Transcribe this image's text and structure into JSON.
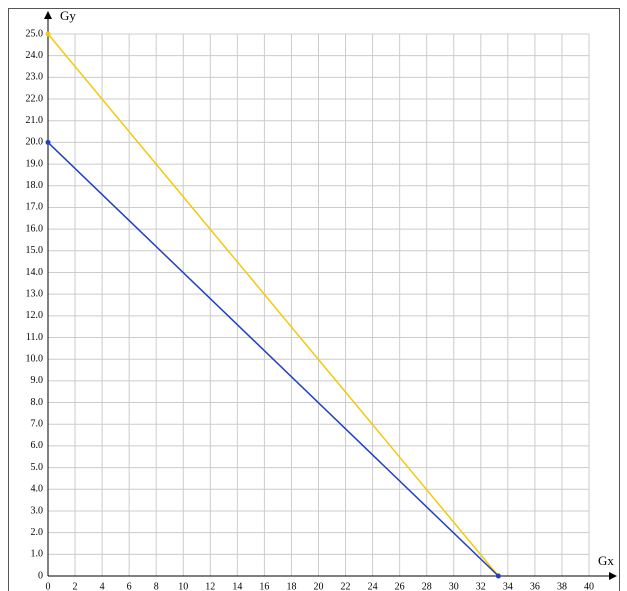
{
  "chart_data": {
    "type": "line",
    "x_label": "Gx",
    "y_label": "Gy",
    "x": [
      0,
      33.3
    ],
    "series": [
      {
        "color": "#f2c90f",
        "values": [
          25,
          0
        ]
      },
      {
        "color": "#2040c0",
        "values": [
          20,
          0
        ]
      }
    ],
    "xlim": [
      0,
      40
    ],
    "xticks": [
      0,
      2,
      4,
      6,
      8,
      10,
      12,
      14,
      16,
      18,
      20,
      22,
      24,
      26,
      28,
      30,
      32,
      34,
      36,
      38,
      40
    ],
    "ylim": [
      0,
      25
    ],
    "yticks": [
      0,
      {
        "value": 1,
        "label": "1.0"
      },
      {
        "value": 2,
        "label": "2.0"
      },
      {
        "value": 3,
        "label": "3.0"
      },
      {
        "value": 4,
        "label": "4.0"
      },
      {
        "value": 5,
        "label": "5.0"
      },
      {
        "value": 6,
        "label": "6.0"
      },
      {
        "value": 7,
        "label": "7.0"
      },
      {
        "value": 8,
        "label": "8.0"
      },
      {
        "value": 9,
        "label": "9.0"
      },
      {
        "value": 10,
        "label": "10.0"
      },
      {
        "value": 11,
        "label": "11.0"
      },
      {
        "value": 12,
        "label": "12.0"
      },
      {
        "value": 13,
        "label": "13.0"
      },
      {
        "value": 14,
        "label": "14.0"
      },
      {
        "value": 15,
        "label": "15.0"
      },
      {
        "value": 16,
        "label": "16.0"
      },
      {
        "value": 17,
        "label": "17.0"
      },
      {
        "value": 18,
        "label": "18.0"
      },
      {
        "value": 19,
        "label": "19.0"
      },
      {
        "value": 20,
        "label": "20.0"
      },
      {
        "value": 21,
        "label": "21.0"
      },
      {
        "value": 22,
        "label": "22.0"
      },
      {
        "value": 23,
        "label": "23.0"
      },
      {
        "value": 24,
        "label": "24.0"
      },
      {
        "value": 25,
        "label": "25.0"
      }
    ],
    "grid": true
  }
}
